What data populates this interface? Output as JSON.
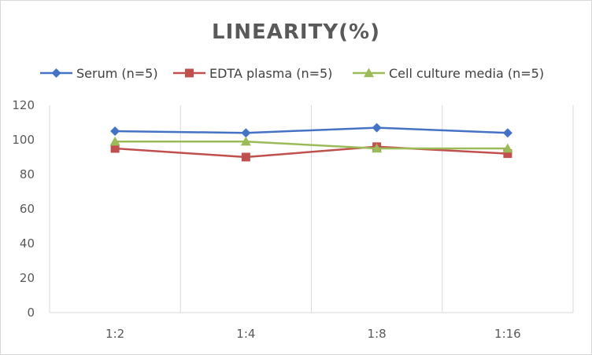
{
  "chart_data": {
    "type": "line",
    "title": "LINEARITY(%)",
    "xlabel": "",
    "ylabel": "",
    "categories": [
      "1:2",
      "1:4",
      "1:8",
      "1:16"
    ],
    "ylim": [
      0,
      120
    ],
    "yticks": [
      0,
      20,
      40,
      60,
      80,
      100,
      120
    ],
    "grid": "vertical",
    "legend_position": "top",
    "series": [
      {
        "name": "Serum (n=5)",
        "values": [
          105,
          104,
          107,
          104
        ],
        "color": "#4472c4",
        "marker": "diamond"
      },
      {
        "name": "EDTA plasma (n=5)",
        "values": [
          95,
          90,
          96,
          92
        ],
        "color": "#c0504d",
        "marker": "square"
      },
      {
        "name": "Cell culture media (n=5)",
        "values": [
          99,
          99,
          95,
          95
        ],
        "color": "#9bbb59",
        "marker": "triangle"
      }
    ]
  }
}
